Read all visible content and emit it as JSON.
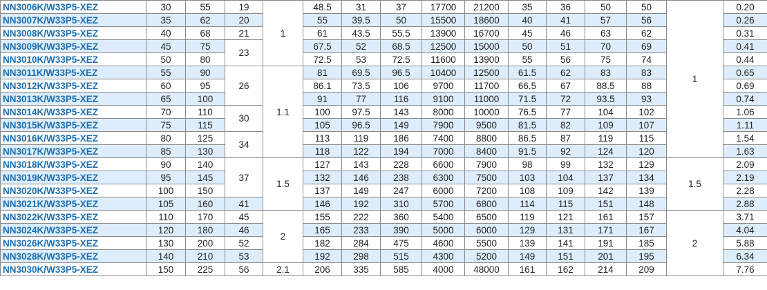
{
  "rows": [
    {
      "model": "NN3006K/W33P5-XEZ",
      "d": "30",
      "D": "55",
      "B": "19",
      "r": "",
      "c1": "48.5",
      "c2": "31",
      "c3": "37",
      "speed1": "17700",
      "speed2": "21200",
      "c4": "35",
      "c5": "36",
      "c6": "50",
      "c7": "50",
      "ra": "",
      "mass": "0.20"
    },
    {
      "model": "NN3007K/W33P5-XEZ",
      "d": "35",
      "D": "62",
      "B": "20",
      "r": "",
      "c1": "55",
      "c2": "39.5",
      "c3": "50",
      "speed1": "15500",
      "speed2": "18600",
      "c4": "40",
      "c5": "41",
      "c6": "57",
      "c7": "56",
      "ra": "",
      "mass": "0.26"
    },
    {
      "model": "NN3008K/W33P5-XEZ",
      "d": "40",
      "D": "68",
      "B": "21",
      "r": "1",
      "c1": "61",
      "c2": "43.5",
      "c3": "55.5",
      "speed1": "13900",
      "speed2": "16700",
      "c4": "45",
      "c5": "46",
      "c6": "63",
      "c7": "62",
      "ra": "",
      "mass": "0.31"
    },
    {
      "model": "NN3009K/W33P5-XEZ",
      "d": "45",
      "D": "75",
      "B": "23",
      "r": "",
      "c1": "67.5",
      "c2": "52",
      "c3": "68.5",
      "speed1": "12500",
      "speed2": "15000",
      "c4": "50",
      "c5": "51",
      "c6": "70",
      "c7": "69",
      "ra": "",
      "mass": "0.41"
    },
    {
      "model": "NN3010K/W33P5-XEZ",
      "d": "50",
      "D": "80",
      "B": "",
      "r": "",
      "c1": "72.5",
      "c2": "53",
      "c3": "72.5",
      "speed1": "11600",
      "speed2": "13900",
      "c4": "55",
      "c5": "56",
      "c6": "75",
      "c7": "74",
      "ra": "",
      "mass": "0.44"
    },
    {
      "model": "NN3011K/W33P5-XEZ",
      "d": "55",
      "D": "90",
      "B": "26",
      "r": "",
      "c1": "81",
      "c2": "69.5",
      "c3": "96.5",
      "speed1": "10400",
      "speed2": "12500",
      "c4": "61.5",
      "c5": "62",
      "c6": "83",
      "c7": "83",
      "ra": "1",
      "mass": "0.65"
    },
    {
      "model": "NN3012K/W33P5-XEZ",
      "d": "60",
      "D": "95",
      "B": "",
      "r": "",
      "c1": "86.1",
      "c2": "73.5",
      "c3": "106",
      "speed1": "9700",
      "speed2": "11700",
      "c4": "66.5",
      "c5": "67",
      "c6": "88.5",
      "c7": "88",
      "ra": "",
      "mass": "0.69"
    },
    {
      "model": "NN3013K/W33P5-XEZ",
      "d": "65",
      "D": "100",
      "B": "",
      "r": "1.1",
      "c1": "91",
      "c2": "77",
      "c3": "116",
      "speed1": "9100",
      "speed2": "11000",
      "c4": "71.5",
      "c5": "72",
      "c6": "93.5",
      "c7": "93",
      "ra": "",
      "mass": "0.74"
    },
    {
      "model": "NN3014K/W33P5-XEZ",
      "d": "70",
      "D": "110",
      "B": "30",
      "r": "",
      "c1": "100",
      "c2": "97.5",
      "c3": "143",
      "speed1": "8000",
      "speed2": "10000",
      "c4": "76.5",
      "c5": "77",
      "c6": "104",
      "c7": "102",
      "ra": "",
      "mass": "1.06"
    },
    {
      "model": "NN3015K/W33P5-XEZ",
      "d": "75",
      "D": "115",
      "B": "",
      "r": "",
      "c1": "105",
      "c2": "96.5",
      "c3": "149",
      "speed1": "7900",
      "speed2": "9500",
      "c4": "81.5",
      "c5": "82",
      "c6": "109",
      "c7": "107",
      "ra": "",
      "mass": "1.11"
    },
    {
      "model": "NN3016K/W33P5-XEZ",
      "d": "80",
      "D": "125",
      "B": "34",
      "r": "",
      "c1": "113",
      "c2": "119",
      "c3": "186",
      "speed1": "7400",
      "speed2": "8800",
      "c4": "86.5",
      "c5": "87",
      "c6": "119",
      "c7": "115",
      "ra": "",
      "mass": "1.54"
    },
    {
      "model": "NN3017K/W33P5-XEZ",
      "d": "85",
      "D": "130",
      "B": "",
      "r": "",
      "c1": "118",
      "c2": "122",
      "c3": "194",
      "speed1": "7000",
      "speed2": "8400",
      "c4": "91.5",
      "c5": "92",
      "c6": "124",
      "c7": "120",
      "ra": "",
      "mass": "1.63"
    },
    {
      "model": "NN3018K/W33P5-XEZ",
      "d": "90",
      "D": "140",
      "B": "37",
      "r": "1.5",
      "c1": "127",
      "c2": "143",
      "c3": "228",
      "speed1": "6600",
      "speed2": "7900",
      "c4": "98",
      "c5": "99",
      "c6": "132",
      "c7": "129",
      "ra": "1.5",
      "mass": "2.09"
    },
    {
      "model": "NN3019K/W33P5-XEZ",
      "d": "95",
      "D": "145",
      "B": "",
      "r": "",
      "c1": "132",
      "c2": "146",
      "c3": "238",
      "speed1": "6300",
      "speed2": "7500",
      "c4": "103",
      "c5": "104",
      "c6": "137",
      "c7": "134",
      "ra": "",
      "mass": "2.19"
    },
    {
      "model": "NN3020K/W33P5-XEZ",
      "d": "100",
      "D": "150",
      "B": "",
      "r": "",
      "c1": "137",
      "c2": "149",
      "c3": "247",
      "speed1": "6000",
      "speed2": "7200",
      "c4": "108",
      "c5": "109",
      "c6": "142",
      "c7": "139",
      "ra": "",
      "mass": "2.28"
    },
    {
      "model": "NN3021K/W33P5-XEZ",
      "d": "105",
      "D": "160",
      "B": "41",
      "r": "",
      "c1": "146",
      "c2": "192",
      "c3": "310",
      "speed1": "5700",
      "speed2": "6800",
      "c4": "114",
      "c5": "115",
      "c6": "151",
      "c7": "148",
      "ra": "",
      "mass": "2.88"
    },
    {
      "model": "NN3022K/W33P5-XEZ",
      "d": "110",
      "D": "170",
      "B": "45",
      "r": "2",
      "c1": "155",
      "c2": "222",
      "c3": "360",
      "speed1": "5400",
      "speed2": "6500",
      "c4": "119",
      "c5": "121",
      "c6": "161",
      "c7": "157",
      "ra": "2",
      "mass": "3.71"
    },
    {
      "model": "NN3024K/W33P5-XEZ",
      "d": "120",
      "D": "180",
      "B": "46",
      "r": "",
      "c1": "165",
      "c2": "233",
      "c3": "390",
      "speed1": "5000",
      "speed2": "6000",
      "c4": "129",
      "c5": "131",
      "c6": "171",
      "c7": "167",
      "ra": "",
      "mass": "4.04"
    },
    {
      "model": "NN3026K/W33P5-XEZ",
      "d": "130",
      "D": "200",
      "B": "52",
      "r": "",
      "c1": "182",
      "c2": "284",
      "c3": "475",
      "speed1": "4600",
      "speed2": "5500",
      "c4": "139",
      "c5": "141",
      "c6": "191",
      "c7": "185",
      "ra": "",
      "mass": "5.88"
    },
    {
      "model": "NN3028K/W33P5-XEZ",
      "d": "140",
      "D": "210",
      "B": "53",
      "r": "",
      "c1": "192",
      "c2": "298",
      "c3": "515",
      "speed1": "4300",
      "speed2": "5200",
      "c4": "149",
      "c5": "151",
      "c6": "201",
      "c7": "195",
      "ra": "",
      "mass": "6.34"
    },
    {
      "model": "NN3030K/W33P5-XEZ",
      "d": "150",
      "D": "225",
      "B": "56",
      "r": "2.1",
      "c1": "206",
      "c2": "335",
      "c3": "585",
      "speed1": "4000",
      "speed2": "48000",
      "c4": "161",
      "c5": "162",
      "c6": "214",
      "c7": "209",
      "ra": "",
      "mass": "7.76"
    }
  ],
  "colors": {
    "model_text": "#1b6fb3",
    "row_shade": "#deedfb",
    "border": "#8a8a8a"
  }
}
